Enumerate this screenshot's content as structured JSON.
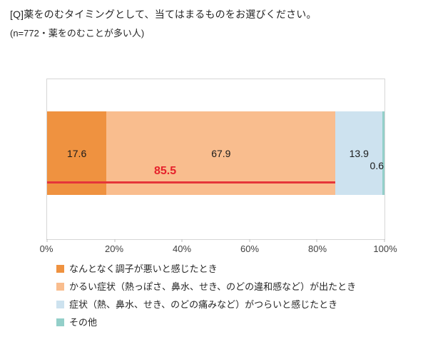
{
  "header": {
    "question": "[Q]薬をのむタイミングとして、当てはまるものをお選びください。",
    "sample_note": "(n=772・薬をのむことが多い人)"
  },
  "chart_data": {
    "type": "bar",
    "subtype": "horizontal-stacked",
    "unit": "%",
    "categories": [
      "なんとなく調子が悪いと感じたとき",
      "かるい症状（熱っぽさ、鼻水、せき、のどの違和感など）が出たとき",
      "症状（熱、鼻水、せき、のどの痛みなど）がつらいと感じたとき",
      "その他"
    ],
    "values": [
      17.6,
      67.9,
      13.9,
      0.6
    ],
    "colors": [
      "#ef9240",
      "#f9bd8e",
      "#cde2ef",
      "#93cfc9"
    ],
    "xlim": [
      0,
      100
    ],
    "x_ticks": [
      "0%",
      "20%",
      "40%",
      "60%",
      "80%",
      "100%"
    ],
    "grid": "off",
    "legend_position": "bottom",
    "annotation": {
      "value": 85.5,
      "span_pct": [
        0,
        85.5
      ],
      "line_color": "#e5353a",
      "label_color": "#e5212b"
    }
  },
  "legend": {
    "items": [
      {
        "label": "なんとなく調子が悪いと感じたとき",
        "color": "#ef9240"
      },
      {
        "label": "かるい症状（熱っぽさ、鼻水、せき、のどの違和感など）が出たとき",
        "color": "#f9bd8e"
      },
      {
        "label": "症状（熱、鼻水、せき、のどの痛みなど）がつらいと感じたとき",
        "color": "#cde2ef"
      },
      {
        "label": "その他",
        "color": "#93cfc9"
      }
    ]
  }
}
